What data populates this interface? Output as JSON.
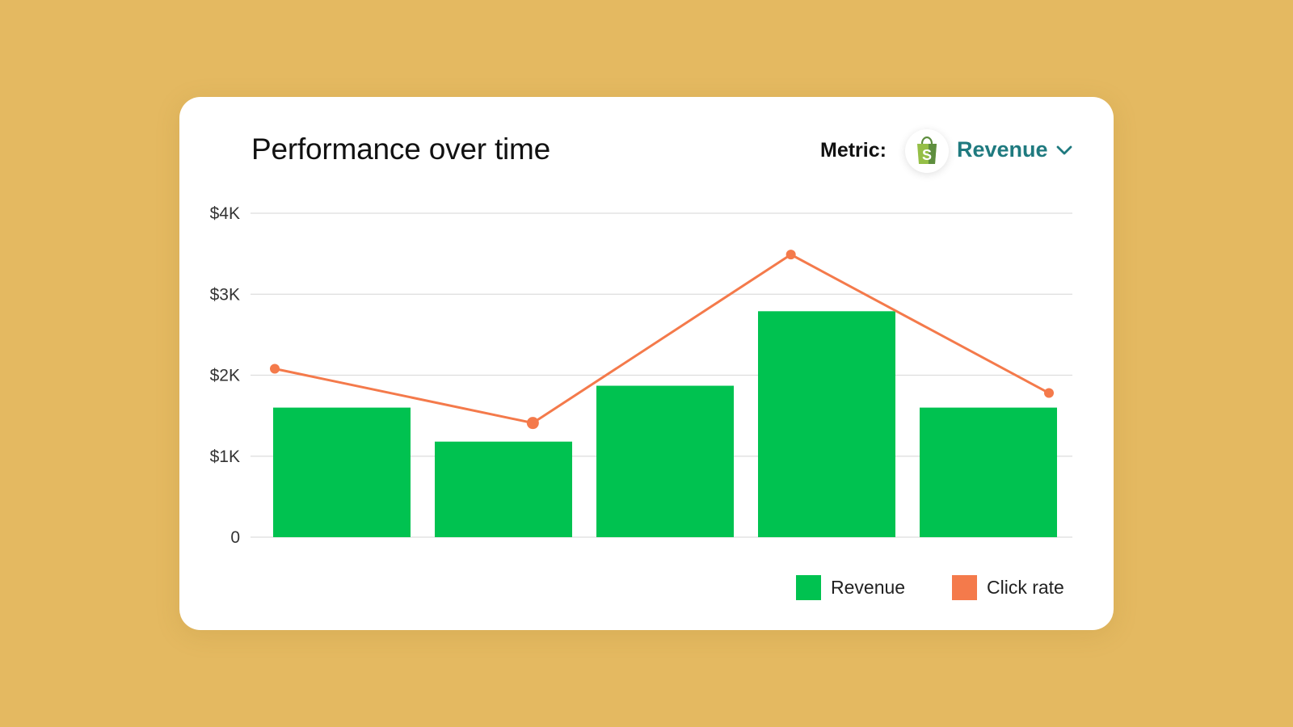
{
  "header": {
    "title": "Performance over time",
    "metric_label": "Metric:",
    "metric_value": "Revenue"
  },
  "icons": {
    "store": "shopping-bag-icon",
    "dropdown": "chevron-down-icon"
  },
  "colors": {
    "background": "#E4B961",
    "revenue": "#00C250",
    "click_rate": "#F47A4B",
    "metric_accent": "#1F7A7F"
  },
  "chart_data": {
    "type": "bar",
    "title": "Performance over time",
    "xlabel": "",
    "ylabel": "",
    "ylim": [
      0,
      4000
    ],
    "yticks": [
      {
        "value": 0,
        "label": "0"
      },
      {
        "value": 1000,
        "label": "$1K"
      },
      {
        "value": 2000,
        "label": "$2K"
      },
      {
        "value": 3000,
        "label": "$3K"
      },
      {
        "value": 4000,
        "label": "$4K"
      }
    ],
    "grid": true,
    "legend_placement": "bottom-right",
    "series": [
      {
        "name": "Revenue",
        "type": "bar",
        "values": [
          1600,
          1180,
          1870,
          2790,
          1600
        ]
      },
      {
        "name": "Click rate",
        "type": "line",
        "values": [
          2080,
          1410,
          3490,
          1780
        ]
      }
    ]
  }
}
